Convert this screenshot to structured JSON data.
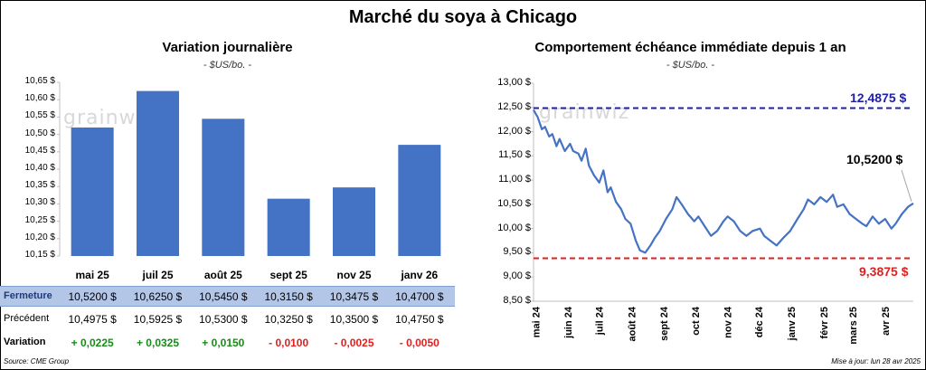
{
  "title": "Marché du soya à Chicago",
  "left_panel": {
    "title": "Variation journalière",
    "unit": "- $US/bo. -",
    "watermark": "grainwiz",
    "table": {
      "rows": [
        {
          "label": "Fermeture",
          "values": [
            "10,5200  $",
            "10,6250  $",
            "10,5450  $",
            "10,3150  $",
            "10,3475  $",
            "10,4700  $"
          ]
        },
        {
          "label": "Précédent",
          "values": [
            "10,4975  $",
            "10,5925  $",
            "10,5300  $",
            "10,3250  $",
            "10,3500  $",
            "10,4750  $"
          ]
        },
        {
          "label": "Variation",
          "values": [
            "+ 0,0225",
            "+ 0,0325",
            "+ 0,0150",
            "- 0,0100",
            "- 0,0025",
            "- 0,0050"
          ]
        }
      ]
    }
  },
  "right_panel": {
    "title": "Comportement  échéance immédiate depuis 1 an",
    "unit": "- $US/bo. -",
    "watermark": "grainwiz",
    "high_label": "12,4875 $",
    "low_label": "9,3875 $",
    "last_label": "10,5200 $"
  },
  "source": "Source: CME Group",
  "updated": "Mise à jour: lun 28 avr 2025",
  "colors": {
    "bar": "#4472c4",
    "line": "#4472c4",
    "high": "#1f1fa8",
    "low": "#e02020",
    "positive": "#1a8a1a",
    "negative": "#e02020",
    "highlight_row": "#b4c6e7"
  },
  "chart_data": [
    {
      "type": "bar",
      "title": "Variation journalière",
      "categories": [
        "mai 25",
        "juil 25",
        "août 25",
        "sept 25",
        "nov 25",
        "janv 26"
      ],
      "values": [
        10.52,
        10.625,
        10.545,
        10.315,
        10.3475,
        10.47
      ],
      "ylim": [
        10.15,
        10.65
      ],
      "yticks": [
        "10,15 $",
        "10,20 $",
        "10,25 $",
        "10,30 $",
        "10,35 $",
        "10,40 $",
        "10,45 $",
        "10,50 $",
        "10,55 $",
        "10,60 $",
        "10,65 $"
      ],
      "grid": false
    },
    {
      "type": "line",
      "title": "Comportement  échéance immédiate depuis 1 an",
      "ylim": [
        8.5,
        13.0
      ],
      "yticks": [
        "8,50 $",
        "9,00 $",
        "9,50 $",
        "10,00 $",
        "10,50 $",
        "11,00 $",
        "11,50 $",
        "12,00 $",
        "12,50 $",
        "13,00 $"
      ],
      "xticks": [
        "mai 24",
        "juin 24",
        "juil 24",
        "août 24",
        "sept 24",
        "oct 24",
        "nov 24",
        "déc 24",
        "janv 25",
        "févr 25",
        "mars 25",
        "avr 25"
      ],
      "x": [
        "2024-04-29",
        "2024-05-03",
        "2024-05-07",
        "2024-05-10",
        "2024-05-14",
        "2024-05-17",
        "2024-05-21",
        "2024-05-24",
        "2024-05-29",
        "2024-06-03",
        "2024-06-06",
        "2024-06-11",
        "2024-06-14",
        "2024-06-18",
        "2024-06-21",
        "2024-06-26",
        "2024-07-01",
        "2024-07-05",
        "2024-07-09",
        "2024-07-12",
        "2024-07-17",
        "2024-07-22",
        "2024-07-26",
        "2024-07-31",
        "2024-08-05",
        "2024-08-09",
        "2024-08-14",
        "2024-08-19",
        "2024-08-23",
        "2024-08-28",
        "2024-09-03",
        "2024-09-09",
        "2024-09-13",
        "2024-09-18",
        "2024-09-24",
        "2024-09-30",
        "2024-10-04",
        "2024-10-10",
        "2024-10-16",
        "2024-10-22",
        "2024-10-28",
        "2024-11-01",
        "2024-11-07",
        "2024-11-13",
        "2024-11-19",
        "2024-11-25",
        "2024-12-02",
        "2024-12-06",
        "2024-12-12",
        "2024-12-18",
        "2024-12-24",
        "2024-12-31",
        "2025-01-07",
        "2025-01-13",
        "2025-01-17",
        "2025-01-23",
        "2025-01-29",
        "2025-02-04",
        "2025-02-10",
        "2025-02-14",
        "2025-02-20",
        "2025-02-26",
        "2025-03-04",
        "2025-03-10",
        "2025-03-14",
        "2025-03-20",
        "2025-03-26",
        "2025-04-01",
        "2025-04-07",
        "2025-04-11",
        "2025-04-17",
        "2025-04-23",
        "2025-04-28"
      ],
      "series": [
        {
          "values": [
            12.45,
            12.3,
            12.05,
            12.1,
            11.9,
            11.95,
            11.7,
            11.85,
            11.6,
            11.75,
            11.6,
            11.55,
            11.4,
            11.65,
            11.3,
            11.1,
            10.95,
            11.2,
            10.75,
            10.85,
            10.55,
            10.4,
            10.2,
            10.1,
            9.75,
            9.55,
            9.5,
            9.65,
            9.8,
            9.95,
            10.2,
            10.4,
            10.65,
            10.5,
            10.3,
            10.15,
            10.25,
            10.05,
            9.85,
            9.95,
            10.15,
            10.25,
            10.15,
            9.95,
            9.85,
            9.95,
            10.0,
            9.85,
            9.75,
            9.65,
            9.8,
            9.95,
            10.2,
            10.4,
            10.6,
            10.5,
            10.65,
            10.55,
            10.7,
            10.45,
            10.5,
            10.3,
            10.2,
            10.1,
            10.05,
            10.25,
            10.1,
            10.2,
            10.0,
            10.1,
            10.3,
            10.45,
            10.52
          ]
        }
      ],
      "hlines": [
        {
          "value": 12.4875,
          "label": "12,4875 $"
        },
        {
          "value": 9.3875,
          "label": "9,3875 $"
        }
      ],
      "grid": false
    }
  ]
}
